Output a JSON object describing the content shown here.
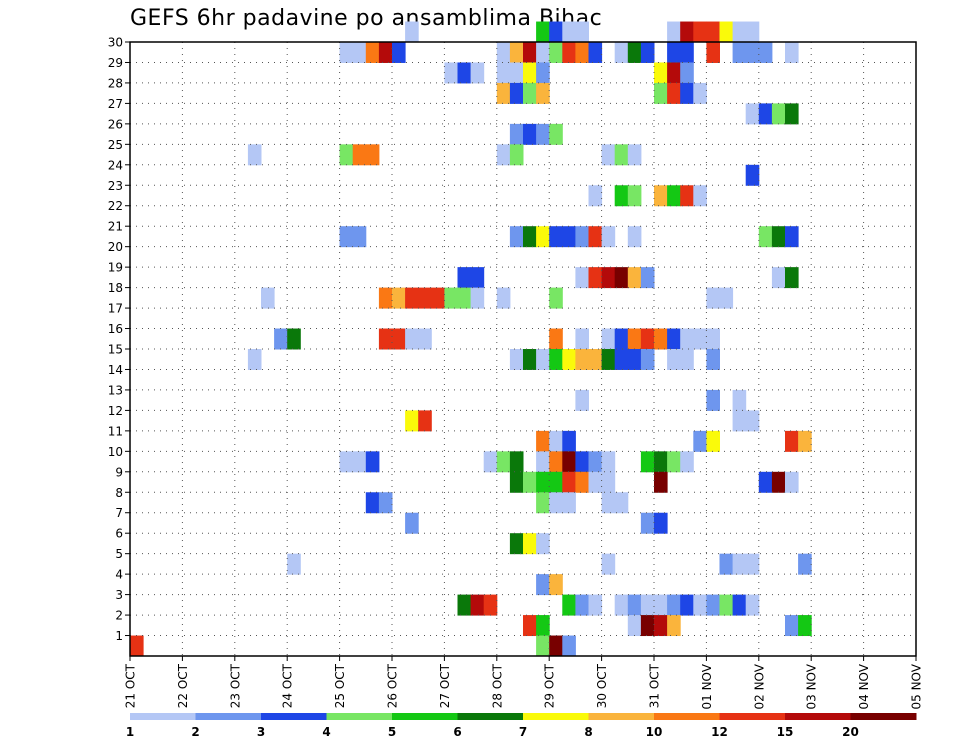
{
  "chart_data": {
    "type": "heatmap",
    "title": "GEFS 6hr padavine po ansamblima Bihac",
    "x": {
      "tick_labels": [
        "21 OCT",
        "22 OCT",
        "23 OCT",
        "24 OCT",
        "25 OCT",
        "26 OCT",
        "27 OCT",
        "28 OCT",
        "29 OCT",
        "30 OCT",
        "31 OCT",
        "01 NOV",
        "02 NOV",
        "03 NOV",
        "04 NOV",
        "05 NOV"
      ],
      "steps_per_day": 4,
      "xlim_steps": [
        0,
        60
      ]
    },
    "y": {
      "tick_labels": [
        "1",
        "2",
        "3",
        "4",
        "5",
        "6",
        "7",
        "8",
        "9",
        "10",
        "11",
        "12",
        "13",
        "14",
        "15",
        "16",
        "17",
        "18",
        "19",
        "20",
        "21",
        "22",
        "23",
        "24",
        "25",
        "26",
        "27",
        "28",
        "29",
        "30"
      ],
      "ylim": [
        0,
        30
      ]
    },
    "legend": {
      "placement": "bottom",
      "labels": [
        "1",
        "2",
        "3",
        "4",
        "5",
        "6",
        "7",
        "8",
        "10",
        "12",
        "15",
        "20"
      ],
      "colors": [
        "#b4c7f5",
        "#6e96ee",
        "#1e46e6",
        "#78e664",
        "#14c814",
        "#0a780a",
        "#fafa0a",
        "#fab43c",
        "#fa7814",
        "#e63214",
        "#b40a0a",
        "#780000"
      ]
    },
    "cells": [
      [
        21,
        30,
        0
      ],
      [
        31,
        30,
        4
      ],
      [
        32,
        30,
        2
      ],
      [
        33,
        30,
        0
      ],
      [
        34,
        30,
        0
      ],
      [
        41,
        30,
        0
      ],
      [
        42,
        30,
        10
      ],
      [
        43,
        30,
        9
      ],
      [
        44,
        30,
        9
      ],
      [
        45,
        30,
        6
      ],
      [
        46,
        30,
        0
      ],
      [
        47,
        30,
        0
      ],
      [
        16,
        29,
        0
      ],
      [
        17,
        29,
        0
      ],
      [
        18,
        29,
        8
      ],
      [
        19,
        29,
        10
      ],
      [
        20,
        29,
        2
      ],
      [
        28,
        29,
        0
      ],
      [
        29,
        29,
        7
      ],
      [
        30,
        29,
        10
      ],
      [
        31,
        29,
        0
      ],
      [
        32,
        29,
        3
      ],
      [
        33,
        29,
        9
      ],
      [
        34,
        29,
        8
      ],
      [
        35,
        29,
        2
      ],
      [
        37,
        29,
        0
      ],
      [
        38,
        29,
        5
      ],
      [
        39,
        29,
        2
      ],
      [
        41,
        29,
        2
      ],
      [
        42,
        29,
        2
      ],
      [
        44,
        29,
        9
      ],
      [
        46,
        29,
        1
      ],
      [
        47,
        29,
        1
      ],
      [
        48,
        29,
        1
      ],
      [
        50,
        29,
        0
      ],
      [
        24,
        28,
        0
      ],
      [
        25,
        28,
        2
      ],
      [
        26,
        28,
        0
      ],
      [
        28,
        28,
        0
      ],
      [
        29,
        28,
        0
      ],
      [
        30,
        28,
        6
      ],
      [
        31,
        28,
        1
      ],
      [
        40,
        28,
        6
      ],
      [
        41,
        28,
        10
      ],
      [
        42,
        28,
        1
      ],
      [
        28,
        27,
        7
      ],
      [
        29,
        27,
        2
      ],
      [
        30,
        27,
        3
      ],
      [
        31,
        27,
        7
      ],
      [
        40,
        27,
        3
      ],
      [
        41,
        27,
        9
      ],
      [
        42,
        27,
        2
      ],
      [
        43,
        27,
        0
      ],
      [
        47,
        26,
        0
      ],
      [
        48,
        26,
        2
      ],
      [
        49,
        26,
        3
      ],
      [
        50,
        26,
        5
      ],
      [
        29,
        25,
        1
      ],
      [
        30,
        25,
        2
      ],
      [
        31,
        25,
        1
      ],
      [
        32,
        25,
        3
      ],
      [
        9,
        24,
        0
      ],
      [
        16,
        24,
        3
      ],
      [
        17,
        24,
        8
      ],
      [
        18,
        24,
        8
      ],
      [
        28,
        24,
        0
      ],
      [
        29,
        24,
        3
      ],
      [
        36,
        24,
        0
      ],
      [
        37,
        24,
        3
      ],
      [
        38,
        24,
        0
      ],
      [
        47,
        23,
        2
      ],
      [
        35,
        22,
        0
      ],
      [
        37,
        22,
        4
      ],
      [
        38,
        22,
        3
      ],
      [
        40,
        22,
        7
      ],
      [
        41,
        22,
        4
      ],
      [
        42,
        22,
        9
      ],
      [
        43,
        22,
        0
      ],
      [
        16,
        20,
        1
      ],
      [
        17,
        20,
        1
      ],
      [
        29,
        20,
        1
      ],
      [
        30,
        20,
        5
      ],
      [
        31,
        20,
        6
      ],
      [
        32,
        20,
        2
      ],
      [
        33,
        20,
        2
      ],
      [
        34,
        20,
        1
      ],
      [
        35,
        20,
        9
      ],
      [
        36,
        20,
        0
      ],
      [
        38,
        20,
        0
      ],
      [
        48,
        20,
        3
      ],
      [
        49,
        20,
        5
      ],
      [
        50,
        20,
        2
      ],
      [
        25,
        18,
        2
      ],
      [
        26,
        18,
        2
      ],
      [
        34,
        18,
        0
      ],
      [
        35,
        18,
        9
      ],
      [
        36,
        18,
        10
      ],
      [
        37,
        18,
        11
      ],
      [
        38,
        18,
        7
      ],
      [
        39,
        18,
        1
      ],
      [
        49,
        18,
        0
      ],
      [
        50,
        18,
        5
      ],
      [
        10,
        17,
        0
      ],
      [
        19,
        17,
        8
      ],
      [
        20,
        17,
        7
      ],
      [
        21,
        17,
        9
      ],
      [
        22,
        17,
        9
      ],
      [
        23,
        17,
        9
      ],
      [
        24,
        17,
        3
      ],
      [
        25,
        17,
        3
      ],
      [
        26,
        17,
        0
      ],
      [
        28,
        17,
        0
      ],
      [
        32,
        17,
        3
      ],
      [
        44,
        17,
        0
      ],
      [
        45,
        17,
        0
      ],
      [
        11,
        15,
        1
      ],
      [
        12,
        15,
        5
      ],
      [
        19,
        15,
        9
      ],
      [
        20,
        15,
        9
      ],
      [
        21,
        15,
        0
      ],
      [
        22,
        15,
        0
      ],
      [
        32,
        15,
        8
      ],
      [
        34,
        15,
        0
      ],
      [
        36,
        15,
        0
      ],
      [
        37,
        15,
        2
      ],
      [
        38,
        15,
        8
      ],
      [
        39,
        15,
        9
      ],
      [
        40,
        15,
        8
      ],
      [
        41,
        15,
        2
      ],
      [
        42,
        15,
        0
      ],
      [
        43,
        15,
        0
      ],
      [
        44,
        15,
        0
      ],
      [
        9,
        14,
        0
      ],
      [
        29,
        14,
        0
      ],
      [
        30,
        14,
        5
      ],
      [
        31,
        14,
        0
      ],
      [
        32,
        14,
        4
      ],
      [
        33,
        14,
        6
      ],
      [
        34,
        14,
        7
      ],
      [
        35,
        14,
        7
      ],
      [
        36,
        14,
        5
      ],
      [
        37,
        14,
        2
      ],
      [
        38,
        14,
        2
      ],
      [
        39,
        14,
        1
      ],
      [
        41,
        14,
        0
      ],
      [
        42,
        14,
        0
      ],
      [
        44,
        14,
        1
      ],
      [
        34,
        12,
        0
      ],
      [
        44,
        12,
        1
      ],
      [
        46,
        12,
        0
      ],
      [
        21,
        11,
        6
      ],
      [
        22,
        11,
        9
      ],
      [
        46,
        11,
        0
      ],
      [
        47,
        11,
        0
      ],
      [
        31,
        10,
        8
      ],
      [
        32,
        10,
        0
      ],
      [
        33,
        10,
        2
      ],
      [
        43,
        10,
        1
      ],
      [
        44,
        10,
        6
      ],
      [
        50,
        10,
        9
      ],
      [
        51,
        10,
        7
      ],
      [
        16,
        9,
        0
      ],
      [
        17,
        9,
        0
      ],
      [
        18,
        9,
        2
      ],
      [
        27,
        9,
        0
      ],
      [
        28,
        9,
        3
      ],
      [
        29,
        9,
        5
      ],
      [
        31,
        9,
        0
      ],
      [
        32,
        9,
        8
      ],
      [
        33,
        9,
        11
      ],
      [
        34,
        9,
        2
      ],
      [
        35,
        9,
        1
      ],
      [
        36,
        9,
        0
      ],
      [
        39,
        9,
        4
      ],
      [
        40,
        9,
        5
      ],
      [
        41,
        9,
        3
      ],
      [
        42,
        9,
        0
      ],
      [
        29,
        8,
        5
      ],
      [
        30,
        8,
        3
      ],
      [
        31,
        8,
        4
      ],
      [
        32,
        8,
        4
      ],
      [
        33,
        8,
        9
      ],
      [
        34,
        8,
        8
      ],
      [
        35,
        8,
        0
      ],
      [
        36,
        8,
        0
      ],
      [
        40,
        8,
        11
      ],
      [
        48,
        8,
        2
      ],
      [
        49,
        8,
        11
      ],
      [
        50,
        8,
        0
      ],
      [
        18,
        7,
        2
      ],
      [
        19,
        7,
        1
      ],
      [
        31,
        7,
        3
      ],
      [
        32,
        7,
        0
      ],
      [
        33,
        7,
        0
      ],
      [
        36,
        7,
        0
      ],
      [
        37,
        7,
        0
      ],
      [
        21,
        6,
        1
      ],
      [
        39,
        6,
        1
      ],
      [
        40,
        6,
        2
      ],
      [
        29,
        5,
        5
      ],
      [
        30,
        5,
        6
      ],
      [
        31,
        5,
        0
      ],
      [
        12,
        4,
        0
      ],
      [
        36,
        4,
        0
      ],
      [
        45,
        4,
        1
      ],
      [
        46,
        4,
        0
      ],
      [
        47,
        4,
        0
      ],
      [
        51,
        4,
        1
      ],
      [
        31,
        3,
        1
      ],
      [
        32,
        3,
        7
      ],
      [
        25,
        2,
        5
      ],
      [
        26,
        2,
        10
      ],
      [
        27,
        2,
        9
      ],
      [
        33,
        2,
        4
      ],
      [
        34,
        2,
        1
      ],
      [
        35,
        2,
        0
      ],
      [
        37,
        2,
        0
      ],
      [
        38,
        2,
        1
      ],
      [
        39,
        2,
        0
      ],
      [
        40,
        2,
        0
      ],
      [
        41,
        2,
        1
      ],
      [
        42,
        2,
        2
      ],
      [
        43,
        2,
        0
      ],
      [
        44,
        2,
        1
      ],
      [
        45,
        2,
        3
      ],
      [
        46,
        2,
        2
      ],
      [
        47,
        2,
        0
      ],
      [
        30,
        1,
        9
      ],
      [
        31,
        1,
        4
      ],
      [
        38,
        1,
        0
      ],
      [
        39,
        1,
        11
      ],
      [
        40,
        1,
        10
      ],
      [
        41,
        1,
        7
      ],
      [
        50,
        1,
        1
      ],
      [
        51,
        1,
        4
      ],
      [
        31,
        0,
        3
      ],
      [
        32,
        0,
        11
      ],
      [
        33,
        0,
        1
      ],
      [
        0,
        0,
        9
      ]
    ]
  }
}
